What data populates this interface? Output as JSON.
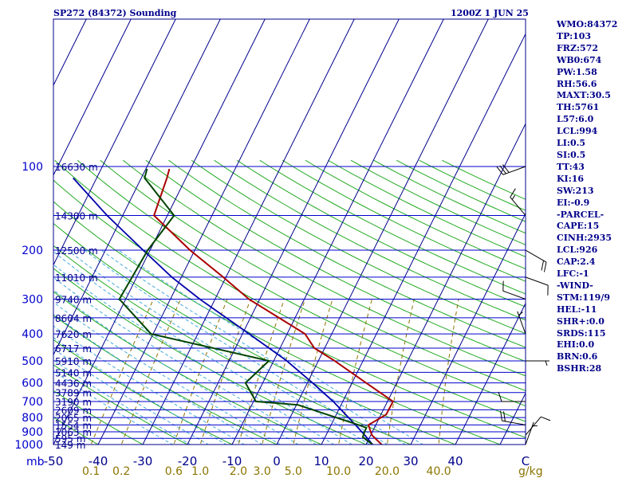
{
  "header": {
    "station": "SP272 (84372) Sounding",
    "time": "1200Z  1 JUN 25"
  },
  "indices": [
    "WMO:84372",
    "TP:103",
    "FRZ:572",
    "WB0:674",
    "PW:1.58",
    "RH:56.6",
    "MAXT:30.5",
    "TH:5761",
    "L57:6.0",
    "LCL:994",
    "LI:0.5",
    "SI:0.5",
    "TT:43",
    "KI:16",
    "SW:213",
    "EI:-0.9",
    "-PARCEL-",
    "CAPE:15",
    "CINH:2935",
    "LCL:926",
    "CAP:2.4",
    "LFC:-1",
    "-WIND-",
    "STM:119/9",
    "HEL:-11",
    "SHR+:0.0",
    "SRDS:115",
    "EHI:0.0",
    "BRN:0.6",
    "BSHR:28"
  ],
  "colors": {
    "isobar": "#0000cd",
    "isotherm": "#00008b",
    "dry_adiabat": "#22aa22",
    "moist_adiabat": "#44aadd",
    "mixing_ratio": "#8b7500",
    "temperature": "#aa0000",
    "dewpoint": "#004400",
    "parcel": "#0000aa"
  },
  "chart_data": {
    "type": "skew-t",
    "xlabel": "C",
    "w_unit": "g/kg",
    "ylabel": "mb",
    "pressure_ticks": [
      100,
      200,
      300,
      400,
      500,
      600,
      700,
      800,
      900,
      1000
    ],
    "temperature_ticks": [
      -50,
      -40,
      -30,
      -20,
      -10,
      0,
      10,
      20,
      30,
      40
    ],
    "mixing_ratio_ticks": [
      "0.1",
      "0.2",
      "0.6",
      "1.0",
      "2.0",
      "3.0",
      "5.0",
      "10.0",
      "20.0",
      "40.0"
    ],
    "heights": [
      {
        "p": 100,
        "label": "16630 m"
      },
      {
        "p": 150,
        "label": "14300 m"
      },
      {
        "p": 200,
        "label": "12500 m"
      },
      {
        "p": 250,
        "label": "11010 m"
      },
      {
        "p": 300,
        "label": "9740 m"
      },
      {
        "p": 350,
        "label": "8604 m"
      },
      {
        "p": 400,
        "label": "7620 m"
      },
      {
        "p": 450,
        "label": "6717 m"
      },
      {
        "p": 500,
        "label": "5910 m"
      },
      {
        "p": 550,
        "label": "5140 m"
      },
      {
        "p": 600,
        "label": "4436 m"
      },
      {
        "p": 650,
        "label": "3789 m"
      },
      {
        "p": 700,
        "label": "3190 m"
      },
      {
        "p": 750,
        "label": "2609 m"
      },
      {
        "p": 800,
        "label": "2065 m"
      },
      {
        "p": 850,
        "label": "1554 m"
      },
      {
        "p": 900,
        "label": "1063 m"
      },
      {
        "p": 950,
        "label": "595 m"
      },
      {
        "p": 1000,
        "label": "149 m"
      }
    ],
    "temperature_profile": [
      [
        1000,
        23.5
      ],
      [
        960,
        21.5
      ],
      [
        925,
        19.7
      ],
      [
        850,
        17.2
      ],
      [
        780,
        19.4
      ],
      [
        700,
        18.7
      ],
      [
        600,
        9.5
      ],
      [
        500,
        -1.3
      ],
      [
        450,
        -8
      ],
      [
        400,
        -12.5
      ],
      [
        300,
        -31
      ],
      [
        250,
        -40.5
      ],
      [
        200,
        -52.5
      ],
      [
        150,
        -66.5
      ],
      [
        110,
        -70
      ],
      [
        102,
        -71
      ]
    ],
    "dewpoint_profile": [
      [
        1000,
        21.5
      ],
      [
        980,
        20.3
      ],
      [
        940,
        18
      ],
      [
        900,
        17.5
      ],
      [
        870,
        17.2
      ],
      [
        850,
        15
      ],
      [
        720,
        -2
      ],
      [
        700,
        -12
      ],
      [
        600,
        -17.5
      ],
      [
        500,
        -16
      ],
      [
        400,
        -47
      ],
      [
        300,
        -60
      ],
      [
        200,
        -62
      ],
      [
        150,
        -62
      ],
      [
        110,
        -75
      ],
      [
        102,
        -76
      ]
    ],
    "parcel_profile": [
      [
        994,
        21.2
      ],
      [
        960,
        19.7
      ],
      [
        940,
        18.8
      ],
      [
        925,
        18.1
      ],
      [
        850,
        14.3
      ],
      [
        800,
        11.5
      ],
      [
        700,
        5.3
      ],
      [
        600,
        -2.5
      ],
      [
        500,
        -12
      ],
      [
        400,
        -25
      ],
      [
        300,
        -42
      ],
      [
        250,
        -52
      ],
      [
        200,
        -63
      ],
      [
        150,
        -77
      ],
      [
        110,
        -91
      ]
    ],
    "wind_barbs": [
      {
        "p": 1000,
        "dir": 20,
        "spd": 5
      },
      {
        "p": 925,
        "dir": 40,
        "spd": 10
      },
      {
        "p": 850,
        "dir": 280,
        "spd": 20
      },
      {
        "p": 700,
        "dir": 270,
        "spd": 10
      },
      {
        "p": 500,
        "dir": 90,
        "spd": 5
      },
      {
        "p": 400,
        "dir": 340,
        "spd": 5
      },
      {
        "p": 300,
        "dir": 290,
        "spd": 10
      },
      {
        "p": 250,
        "dir": 110,
        "spd": 10
      },
      {
        "p": 200,
        "dir": 120,
        "spd": 20
      },
      {
        "p": 150,
        "dir": 320,
        "spd": 15
      },
      {
        "p": 100,
        "dir": 250,
        "spd": 30
      }
    ]
  }
}
